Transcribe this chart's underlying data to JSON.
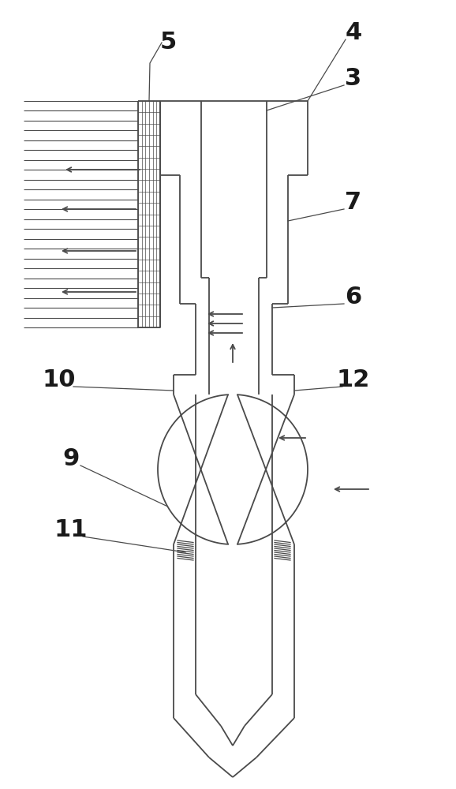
{
  "bg_color": "#ffffff",
  "line_color": "#4a4a4a",
  "lw": 1.3,
  "figsize": [
    5.78,
    10.0
  ],
  "dpi": 100
}
